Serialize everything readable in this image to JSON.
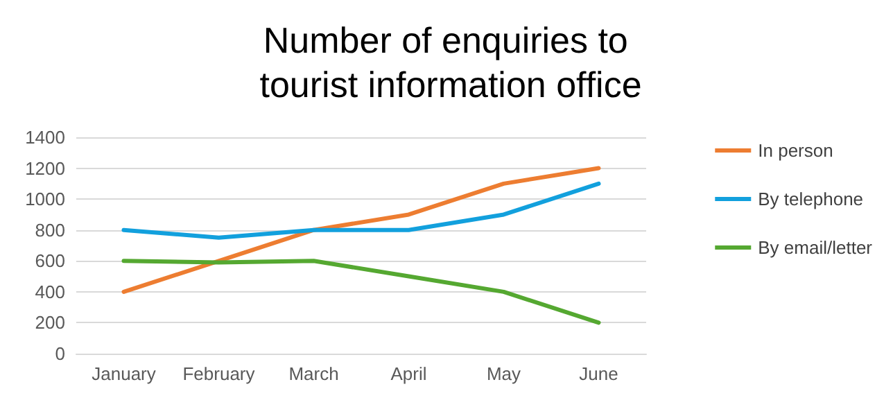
{
  "chart_data": {
    "type": "line",
    "title": "Number of enquiries to tourist information office",
    "categories": [
      "January",
      "February",
      "March",
      "April",
      "May",
      "June"
    ],
    "series": [
      {
        "name": "In person",
        "color": "#ed7d31",
        "values": [
          400,
          600,
          800,
          900,
          1100,
          1200
        ]
      },
      {
        "name": "By telephone",
        "color": "#12a0dd",
        "values": [
          800,
          750,
          800,
          800,
          900,
          1100
        ]
      },
      {
        "name": "By email/letter",
        "color": "#55a831",
        "values": [
          600,
          590,
          600,
          500,
          400,
          200
        ]
      }
    ],
    "ylim": [
      0,
      1400
    ],
    "yticks": [
      0,
      200,
      400,
      600,
      800,
      1000,
      1200,
      1400
    ],
    "grid": "y",
    "legend": "right",
    "marker": "none",
    "line_style": "solid"
  }
}
